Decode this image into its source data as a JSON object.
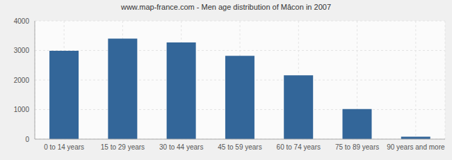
{
  "chart_data": {
    "type": "bar",
    "title": "www.map-france.com - Men age distribution of Mâcon in 2007",
    "categories": [
      "0 to 14 years",
      "15 to 29 years",
      "30 to 44 years",
      "45 to 59 years",
      "60 to 74 years",
      "75 to 89 years",
      "90 years and more"
    ],
    "values": [
      2990,
      3400,
      3270,
      2820,
      2160,
      1020,
      80
    ],
    "color": "#336699",
    "ylim": [
      0,
      4000
    ],
    "yticks": [
      0,
      1000,
      2000,
      3000,
      4000
    ],
    "grid": true
  }
}
